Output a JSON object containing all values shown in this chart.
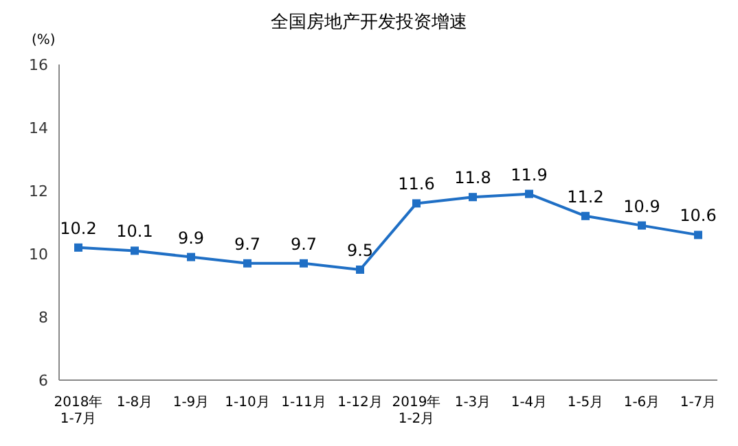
{
  "chart_data": {
    "type": "line",
    "title": "全国房地产开发投资增速",
    "ylabel": "(%)",
    "categories": [
      "2018年\n1-7月",
      "1-8月",
      "1-9月",
      "1-10月",
      "1-11月",
      "1-12月",
      "2019年\n1-2月",
      "1-3月",
      "1-4月",
      "1-5月",
      "1-6月",
      "1-7月"
    ],
    "series": [
      {
        "color": "#1f6fc5",
        "values": [
          10.2,
          10.1,
          9.9,
          9.7,
          9.7,
          9.5,
          11.6,
          11.8,
          11.9,
          11.2,
          10.9,
          10.6
        ]
      }
    ],
    "ylim": [
      6,
      16
    ],
    "yticks": [
      6,
      8,
      10,
      12,
      14,
      16
    ],
    "data_labels": true,
    "marker": "square",
    "line_style": "solid",
    "grid": false
  }
}
